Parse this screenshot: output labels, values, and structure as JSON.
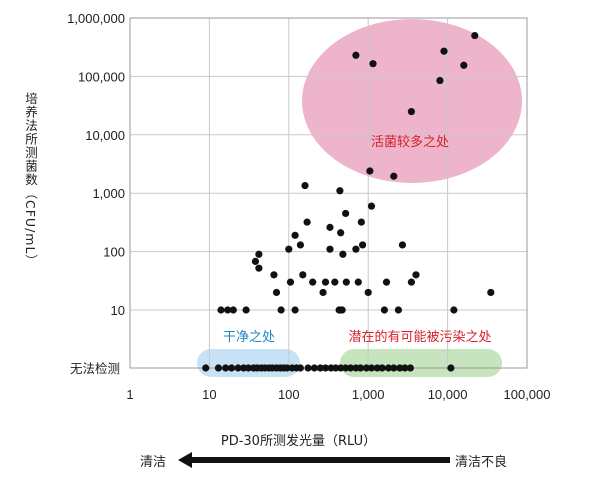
{
  "chart_data": {
    "type": "scatter",
    "xlabel": "PD-30所测发光量（RLU）",
    "ylabel": "培养法所测菌数（CFU/mL）",
    "x_scale": "log",
    "y_scale": "log",
    "xlim": [
      1,
      100000
    ],
    "ylim_values": [
      10,
      1000000
    ],
    "x_ticks": [
      {
        "value": 1,
        "label": "1"
      },
      {
        "value": 10,
        "label": "10"
      },
      {
        "value": 100,
        "label": "100"
      },
      {
        "value": 1000,
        "label": "1,000"
      },
      {
        "value": 10000,
        "label": "10,000"
      },
      {
        "value": 100000,
        "label": "100,000"
      }
    ],
    "y_ticks": [
      {
        "value": 10,
        "label": "10"
      },
      {
        "value": 100,
        "label": "100"
      },
      {
        "value": 1000,
        "label": "1,000"
      },
      {
        "value": 10000,
        "label": "10,000"
      },
      {
        "value": 100000,
        "label": "100,000"
      },
      {
        "value": 1000000,
        "label": "1,000,000"
      }
    ],
    "y_undetected_label": "无法检测",
    "grid": true,
    "regions": [
      {
        "label": "活菌较多之处",
        "color": "#eeb4cb",
        "text_color": "#d8202a"
      },
      {
        "label": "干净之处",
        "color": "#c7e1f5",
        "text_color": "#1f86c8"
      },
      {
        "label": "潜在的有可能被污染之处",
        "color": "#c6e4bd",
        "text_color": "#d8202a"
      }
    ],
    "points": [
      {
        "x": 700,
        "y": 230000
      },
      {
        "x": 1150,
        "y": 165000
      },
      {
        "x": 9000,
        "y": 270000
      },
      {
        "x": 22000,
        "y": 500000
      },
      {
        "x": 8000,
        "y": 85000
      },
      {
        "x": 16000,
        "y": 155000
      },
      {
        "x": 3500,
        "y": 25000
      },
      {
        "x": 1050,
        "y": 2400
      },
      {
        "x": 2100,
        "y": 1950
      },
      {
        "x": 160,
        "y": 1350
      },
      {
        "x": 440,
        "y": 1100
      },
      {
        "x": 1100,
        "y": 600
      },
      {
        "x": 520,
        "y": 450
      },
      {
        "x": 170,
        "y": 320
      },
      {
        "x": 120,
        "y": 190
      },
      {
        "x": 330,
        "y": 260
      },
      {
        "x": 450,
        "y": 210
      },
      {
        "x": 820,
        "y": 320
      },
      {
        "x": 140,
        "y": 130
      },
      {
        "x": 100,
        "y": 110
      },
      {
        "x": 330,
        "y": 110
      },
      {
        "x": 700,
        "y": 110
      },
      {
        "x": 850,
        "y": 130
      },
      {
        "x": 2700,
        "y": 130
      },
      {
        "x": 480,
        "y": 90
      },
      {
        "x": 42,
        "y": 90
      },
      {
        "x": 38,
        "y": 68
      },
      {
        "x": 42,
        "y": 52
      },
      {
        "x": 65,
        "y": 40
      },
      {
        "x": 150,
        "y": 40
      },
      {
        "x": 4000,
        "y": 40
      },
      {
        "x": 3500,
        "y": 30
      },
      {
        "x": 105,
        "y": 30
      },
      {
        "x": 200,
        "y": 30
      },
      {
        "x": 290,
        "y": 30
      },
      {
        "x": 380,
        "y": 30
      },
      {
        "x": 530,
        "y": 30
      },
      {
        "x": 750,
        "y": 30
      },
      {
        "x": 1700,
        "y": 30
      },
      {
        "x": 70,
        "y": 20
      },
      {
        "x": 270,
        "y": 20
      },
      {
        "x": 1000,
        "y": 20
      },
      {
        "x": 35000,
        "y": 20
      },
      {
        "x": 14,
        "y": 10
      },
      {
        "x": 17,
        "y": 10
      },
      {
        "x": 20,
        "y": 10
      },
      {
        "x": 29,
        "y": 10
      },
      {
        "x": 80,
        "y": 10
      },
      {
        "x": 120,
        "y": 10
      },
      {
        "x": 430,
        "y": 10
      },
      {
        "x": 470,
        "y": 10
      },
      {
        "x": 1600,
        "y": 10
      },
      {
        "x": 2400,
        "y": 10
      },
      {
        "x": 12000,
        "y": 10
      },
      {
        "x": 450,
        "y": 10
      }
    ],
    "undetected_points_x": [
      9,
      13,
      16,
      19,
      23,
      27,
      31,
      36,
      40,
      45,
      50,
      56,
      62,
      70,
      78,
      86,
      95,
      110,
      125,
      140,
      175,
      210,
      250,
      290,
      340,
      390,
      450,
      520,
      600,
      700,
      800,
      950,
      1100,
      1300,
      1500,
      1800,
      2100,
      2500,
      2900,
      3400,
      11000
    ]
  },
  "direction": {
    "left_label": "清洁",
    "right_label": "清洁不良"
  }
}
